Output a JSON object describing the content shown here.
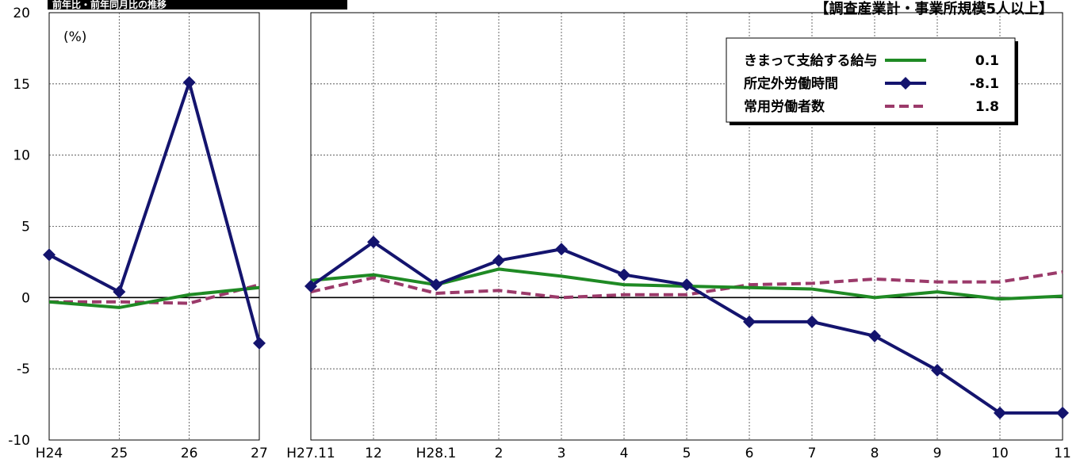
{
  "title": "前年比・前年同月比の推移",
  "note": "【調査産業計・事業所規模5人以上】",
  "chart_data": [
    {
      "type": "line",
      "categories": [
        "H24",
        "25",
        "26",
        "27"
      ],
      "ylabel": "(%)",
      "ylim": [
        -10,
        20
      ],
      "yticks": [
        20,
        15,
        10,
        5,
        0,
        -5,
        -10
      ],
      "grid": true,
      "series": [
        {
          "name": "きまって支給する給与",
          "color": "#1f8a24",
          "style": "solid",
          "values": [
            -0.3,
            -0.7,
            0.2,
            0.7
          ]
        },
        {
          "name": "所定外労働時間",
          "color": "#14146e",
          "style": "diamond",
          "values": [
            3.0,
            0.4,
            15.1,
            -3.2
          ]
        },
        {
          "name": "常用労働者数",
          "color": "#9b3a6a",
          "style": "dashed",
          "values": [
            -0.3,
            -0.3,
            -0.4,
            0.9
          ]
        }
      ]
    },
    {
      "type": "line",
      "categories": [
        "H27.11",
        "12",
        "H28.1",
        "2",
        "3",
        "4",
        "5",
        "6",
        "7",
        "8",
        "9",
        "10",
        "11"
      ],
      "ylim": [
        -10,
        20
      ],
      "grid": true,
      "legend": {
        "placement": "top-right",
        "entries": [
          {
            "label": "きまって支給する給与",
            "value": "0.1"
          },
          {
            "label": "所定外労働時間",
            "value": "-8.1"
          },
          {
            "label": "常用労働者数",
            "value": "1.8"
          }
        ]
      },
      "series": [
        {
          "name": "きまって支給する給与",
          "color": "#1f8a24",
          "style": "solid",
          "values": [
            1.2,
            1.6,
            0.9,
            2.0,
            1.5,
            0.9,
            0.8,
            0.7,
            0.6,
            0.0,
            0.4,
            -0.1,
            0.1
          ]
        },
        {
          "name": "所定外労働時間",
          "color": "#14146e",
          "style": "diamond",
          "values": [
            0.8,
            3.9,
            0.9,
            2.6,
            3.4,
            1.6,
            0.9,
            -1.7,
            -1.7,
            -2.7,
            -5.1,
            -8.1,
            -8.1
          ]
        },
        {
          "name": "常用労働者数",
          "color": "#9b3a6a",
          "style": "dashed",
          "values": [
            0.4,
            1.4,
            0.3,
            0.5,
            0.0,
            0.2,
            0.2,
            0.9,
            1.0,
            1.3,
            1.1,
            1.1,
            1.8
          ]
        }
      ]
    }
  ]
}
